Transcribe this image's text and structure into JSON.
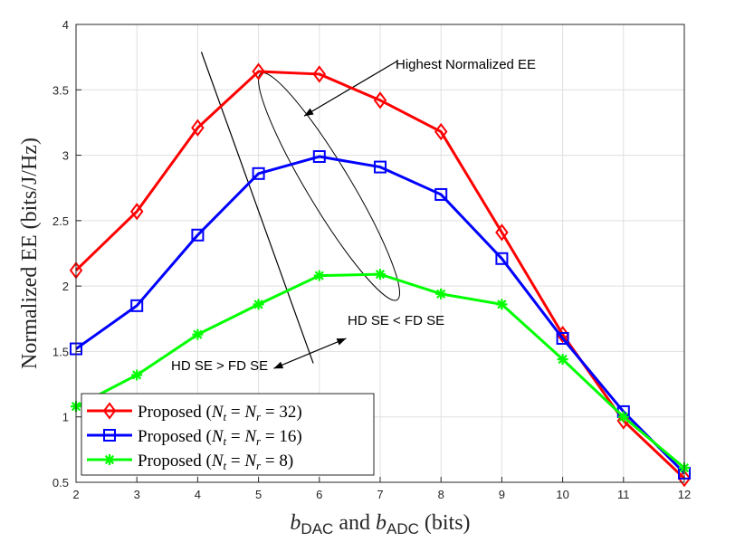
{
  "chart_data": {
    "type": "line",
    "title": "",
    "xlabel": {
      "b1": "b",
      "sub1": "DAC",
      "mid": " and ",
      "b2": "b",
      "sub2": "ADC",
      "unit": " (bits)"
    },
    "ylabel": "Normalized EE (bits/J/Hz)",
    "x": [
      2,
      3,
      4,
      5,
      6,
      7,
      8,
      9,
      10,
      11,
      12
    ],
    "xlim": [
      2,
      12
    ],
    "ylim": [
      0.5,
      4
    ],
    "xticks": [
      "2",
      "3",
      "4",
      "5",
      "6",
      "7",
      "8",
      "9",
      "10",
      "11",
      "12"
    ],
    "yticks": [
      "0.5",
      "1",
      "1.5",
      "2",
      "2.5",
      "3",
      "3.5",
      "4"
    ],
    "grid": true,
    "legend_position": "bottom-left",
    "series": [
      {
        "name": "Proposed (N_t = N_r = 32)",
        "legend": {
          "pre": "Proposed (",
          "v1": "N",
          "s1": "t",
          "eq1": " = ",
          "v2": "N",
          "s2": "r",
          "eq2": " = ",
          "num": "32",
          "post": ")"
        },
        "color": "#ff0000",
        "marker": "diamond",
        "values": [
          2.12,
          2.57,
          3.21,
          3.64,
          3.62,
          3.42,
          3.18,
          2.41,
          1.63,
          0.97,
          0.53
        ]
      },
      {
        "name": "Proposed (N_t = N_r = 16)",
        "legend": {
          "pre": "Proposed (",
          "v1": "N",
          "s1": "t",
          "eq1": " = ",
          "v2": "N",
          "s2": "r",
          "eq2": " = ",
          "num": "16",
          "post": ")"
        },
        "color": "#0000ff",
        "marker": "square",
        "values": [
          1.52,
          1.85,
          2.39,
          2.86,
          2.99,
          2.91,
          2.7,
          2.21,
          1.6,
          1.04,
          0.57
        ]
      },
      {
        "name": "Proposed (N_t = N_r = 8)",
        "legend": {
          "pre": "Proposed (",
          "v1": "N",
          "s1": "t",
          "eq1": " = ",
          "v2": "N",
          "s2": "r",
          "eq2": " = ",
          "num": "8",
          "post": ")"
        },
        "color": "#00ff00",
        "marker": "asterisk",
        "values": [
          1.08,
          1.32,
          1.63,
          1.86,
          2.08,
          2.09,
          1.94,
          1.86,
          1.44,
          1.0,
          0.61
        ]
      }
    ],
    "annotations": [
      {
        "text": "Highest Normalized EE"
      },
      {
        "text": "HD SE < FD SE"
      },
      {
        "text": "HD SE > FD SE"
      }
    ]
  }
}
